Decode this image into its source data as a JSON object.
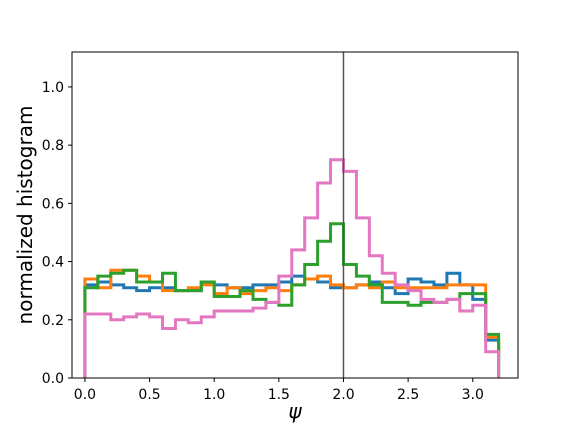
{
  "chart_data": {
    "type": "step-histogram",
    "xlabel": "ψ",
    "ylabel": "normalized histogram",
    "xlim": [
      -0.1,
      3.35
    ],
    "ylim": [
      0.0,
      1.12
    ],
    "xticks": [
      0.0,
      0.5,
      1.0,
      1.5,
      2.0,
      2.5,
      3.0
    ],
    "xtick_labels": [
      "0.0",
      "0.5",
      "1.0",
      "1.5",
      "2.0",
      "2.5",
      "3.0"
    ],
    "yticks": [
      0.0,
      0.2,
      0.4,
      0.6,
      0.8,
      1.0
    ],
    "ytick_labels": [
      "0.0",
      "0.2",
      "0.4",
      "0.6",
      "0.8",
      "1.0"
    ],
    "vline_x": 2.0,
    "vline_color": "#555555",
    "bin_edges": [
      0.0,
      0.1,
      0.2,
      0.3,
      0.4,
      0.5,
      0.6,
      0.7,
      0.8,
      0.9,
      1.0,
      1.1,
      1.2,
      1.3,
      1.4,
      1.5,
      1.6,
      1.7,
      1.8,
      1.9,
      2.0,
      2.1,
      2.2,
      2.3,
      2.4,
      2.5,
      2.6,
      2.7,
      2.8,
      2.9,
      3.0,
      3.1,
      3.2
    ],
    "series": [
      {
        "color": "#1f77b4",
        "values": [
          0.32,
          0.33,
          0.32,
          0.31,
          0.3,
          0.31,
          0.31,
          0.3,
          0.3,
          0.33,
          0.32,
          0.31,
          0.31,
          0.32,
          0.32,
          0.33,
          0.35,
          0.34,
          0.33,
          0.31,
          0.31,
          0.32,
          0.33,
          0.31,
          0.29,
          0.34,
          0.33,
          0.32,
          0.36,
          0.32,
          0.27,
          0.13
        ]
      },
      {
        "color": "#ff7f0e",
        "values": [
          0.34,
          0.31,
          0.37,
          0.37,
          0.35,
          0.33,
          0.3,
          0.3,
          0.31,
          0.32,
          0.29,
          0.31,
          0.29,
          0.3,
          0.31,
          0.3,
          0.32,
          0.34,
          0.35,
          0.32,
          0.31,
          0.32,
          0.31,
          0.33,
          0.31,
          0.31,
          0.31,
          0.31,
          0.32,
          0.32,
          0.32,
          0.14
        ]
      },
      {
        "color": "#2ca02c",
        "values": [
          0.31,
          0.35,
          0.36,
          0.37,
          0.33,
          0.33,
          0.36,
          0.3,
          0.3,
          0.33,
          0.28,
          0.28,
          0.3,
          0.27,
          0.26,
          0.25,
          0.32,
          0.39,
          0.47,
          0.53,
          0.39,
          0.35,
          0.32,
          0.26,
          0.26,
          0.25,
          0.26,
          0.26,
          0.27,
          0.29,
          0.29,
          0.15
        ]
      },
      {
        "color": "#e377c2",
        "values": [
          0.22,
          0.22,
          0.2,
          0.21,
          0.22,
          0.21,
          0.17,
          0.2,
          0.19,
          0.21,
          0.23,
          0.23,
          0.23,
          0.24,
          0.26,
          0.35,
          0.44,
          0.55,
          0.67,
          0.75,
          0.71,
          0.55,
          0.42,
          0.36,
          0.32,
          0.3,
          0.27,
          0.26,
          0.27,
          0.23,
          0.25,
          0.09
        ]
      }
    ]
  }
}
